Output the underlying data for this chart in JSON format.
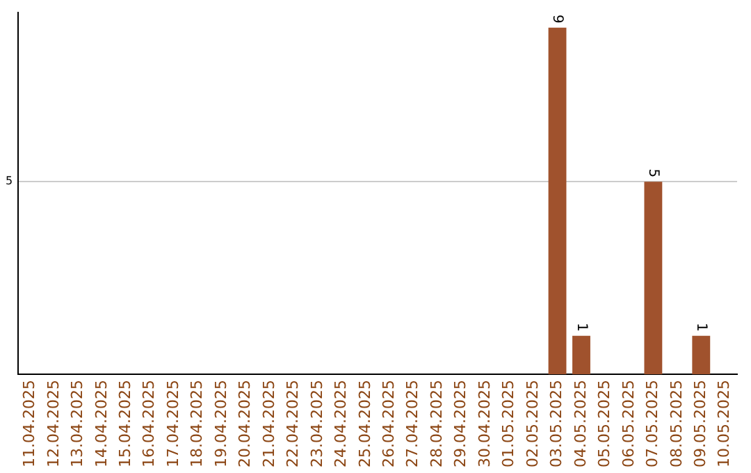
{
  "chart_data": {
    "type": "bar",
    "categories": [
      "11.04.2025",
      "12.04.2025",
      "13.04.2025",
      "14.04.2025",
      "15.04.2025",
      "16.04.2025",
      "17.04.2025",
      "18.04.2025",
      "19.04.2025",
      "20.04.2025",
      "21.04.2025",
      "22.04.2025",
      "23.04.2025",
      "24.04.2025",
      "25.04.2025",
      "26.04.2025",
      "27.04.2025",
      "28.04.2025",
      "29.04.2025",
      "30.04.2025",
      "01.05.2025",
      "02.05.2025",
      "03.05.2025",
      "04.05.2025",
      "05.05.2025",
      "06.05.2025",
      "07.05.2025",
      "08.05.2025",
      "09.05.2025",
      "10.05.2025"
    ],
    "values": [
      null,
      null,
      null,
      null,
      null,
      null,
      null,
      null,
      null,
      null,
      null,
      null,
      null,
      null,
      null,
      null,
      null,
      null,
      null,
      null,
      null,
      null,
      9,
      1,
      null,
      null,
      5,
      null,
      1,
      null
    ],
    "color": "#a0522d",
    "ylim": [
      0,
      9.4
    ],
    "yticks": [
      5
    ],
    "grid": "y",
    "data_labels": true,
    "legend": false
  }
}
